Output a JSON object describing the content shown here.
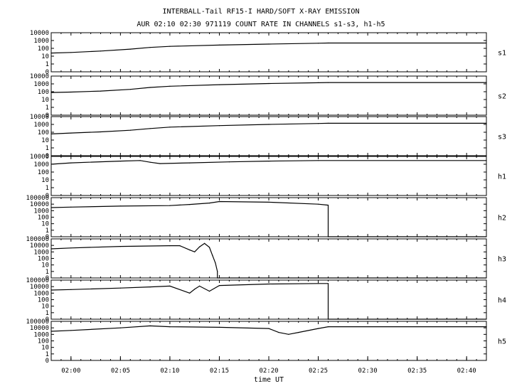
{
  "title": "INTERBALL-Tail RF15-I HARD/SOFT X-RAY EMISSION",
  "subtitle": "AUR 02:10 02:30 971119  COUNT RATE IN CHANNELS s1-s3, h1-h5",
  "chart_data": {
    "type": "line",
    "scale": "log",
    "grid": false,
    "xlabel": "time UT",
    "xlim": [
      "01:58",
      "02:42"
    ],
    "x_ticks": [
      "02:00",
      "02:05",
      "02:10",
      "02:15",
      "02:20",
      "02:25",
      "02:30",
      "02:35",
      "02:40"
    ],
    "panels": [
      {
        "name": "s1",
        "y_ticks": [
          "10000",
          "1000",
          "100",
          "10",
          "1",
          "0"
        ],
        "x": [
          "01:58",
          "02:00",
          "02:03",
          "02:06",
          "02:08",
          "02:10",
          "02:15",
          "02:20",
          "02:25",
          "02:26",
          "02:42"
        ],
        "values": [
          25,
          30,
          45,
          80,
          130,
          180,
          260,
          350,
          450,
          480,
          480
        ]
      },
      {
        "name": "s2",
        "y_ticks": [
          "10000",
          "1000",
          "100",
          "10",
          "1",
          "0"
        ],
        "x": [
          "01:58",
          "02:00",
          "02:03",
          "02:06",
          "02:08",
          "02:10",
          "02:15",
          "02:20",
          "02:25",
          "02:26",
          "02:42"
        ],
        "values": [
          80,
          90,
          120,
          200,
          350,
          500,
          800,
          1100,
          1400,
          1500,
          1500
        ]
      },
      {
        "name": "s3",
        "y_ticks": [
          "10000",
          "1000",
          "100",
          "10",
          "1",
          "0"
        ],
        "x": [
          "01:58",
          "02:00",
          "02:03",
          "02:06",
          "02:08",
          "02:10",
          "02:15",
          "02:20",
          "02:25",
          "02:26",
          "02:42"
        ],
        "values": [
          60,
          80,
          110,
          180,
          300,
          450,
          700,
          1000,
          1300,
          1400,
          1400
        ]
      },
      {
        "name": "h1",
        "y_ticks": [
          "10000",
          "1000",
          "100",
          "10",
          "1",
          "0"
        ],
        "x": [
          "01:58",
          "02:00",
          "02:05",
          "02:07",
          "02:08",
          "02:09",
          "02:12",
          "02:16",
          "02:20",
          "02:25",
          "02:42"
        ],
        "values": [
          1000,
          1500,
          2500,
          3000,
          1800,
          1200,
          1500,
          2000,
          2500,
          3000,
          3000
        ]
      },
      {
        "name": "h2",
        "y_ticks": [
          "100000",
          "10000",
          "1000",
          "100",
          "10",
          "1",
          "0"
        ],
        "x": [
          "01:58",
          "02:00",
          "02:05",
          "02:10",
          "02:12",
          "02:14",
          "02:15",
          "02:20",
          "02:25",
          "02:26",
          "02:26",
          "02:42"
        ],
        "values": [
          3000,
          3500,
          5000,
          6000,
          9000,
          15000,
          25000,
          20000,
          10000,
          7000,
          0,
          0
        ]
      },
      {
        "name": "h3",
        "y_ticks": [
          "100000",
          "10000",
          "1000",
          "100",
          "10",
          "1",
          "0"
        ],
        "x": [
          "01:58",
          "02:00",
          "02:05",
          "02:10",
          "02:11",
          "02:12",
          "02:12.5",
          "02:13",
          "02:13.5",
          "02:14",
          "02:14.3",
          "02:14.6",
          "02:14.8",
          "02:14.8",
          "02:42"
        ],
        "values": [
          3000,
          4000,
          7000,
          9000,
          9000,
          2000,
          1000,
          6000,
          20000,
          5000,
          300,
          20,
          1,
          0,
          0
        ]
      },
      {
        "name": "h4",
        "y_ticks": [
          "100000",
          "10000",
          "1000",
          "100",
          "10",
          "1",
          "0"
        ],
        "x": [
          "01:58",
          "02:00",
          "02:05",
          "02:08",
          "02:10",
          "02:12",
          "02:12.5",
          "02:13",
          "02:14",
          "02:15",
          "02:20",
          "02:25",
          "02:26",
          "02:26",
          "02:42"
        ],
        "values": [
          3000,
          3500,
          6000,
          9000,
          12000,
          1000,
          4000,
          12000,
          2000,
          15000,
          25000,
          30000,
          30000,
          0,
          0
        ]
      },
      {
        "name": "h5",
        "y_ticks": [
          "100000",
          "10000",
          "1000",
          "100",
          "10",
          "1",
          "0"
        ],
        "x": [
          "01:58",
          "02:00",
          "02:05",
          "02:08",
          "02:10",
          "02:15",
          "02:20",
          "02:21",
          "02:22",
          "02:23",
          "02:25",
          "02:26",
          "02:42"
        ],
        "values": [
          3000,
          4000,
          10000,
          20000,
          15000,
          12000,
          8000,
          2000,
          1000,
          2000,
          8000,
          15000,
          15000
        ]
      }
    ]
  }
}
